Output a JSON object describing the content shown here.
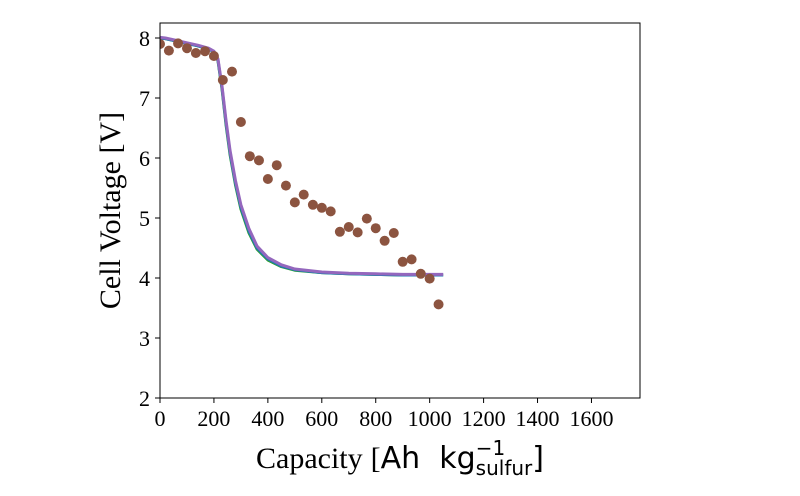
{
  "chart_data": {
    "type": "line",
    "title": "",
    "xlabel": "Capacity",
    "xlabel_unit": {
      "open": "[",
      "base": "Ah  kg",
      "superscript": "−1",
      "subscript": "sulfur",
      "close": "]"
    },
    "ylabel": "Cell Voltage [V]",
    "xlim": [
      0,
      1780
    ],
    "ylim": [
      2,
      8.25
    ],
    "xticks": [
      0,
      200,
      400,
      600,
      800,
      1000,
      1200,
      1400,
      1600
    ],
    "xtick_labels": [
      "0",
      "200",
      "400",
      "600",
      "800",
      "1000",
      "1200",
      "1400",
      "1600"
    ],
    "yticks": [
      2,
      3,
      4,
      5,
      6,
      7,
      8
    ],
    "ytick_labels": [
      "2",
      "3",
      "4",
      "5",
      "6",
      "7",
      "8"
    ],
    "grid": false,
    "legend": false,
    "series": [
      {
        "kind": "line",
        "color": "#2ca02c",
        "x": [
          0,
          20,
          60,
          100,
          140,
          180,
          200,
          215,
          230,
          245,
          260,
          280,
          300,
          330,
          360,
          400,
          450,
          500,
          600,
          700,
          800,
          900,
          1000,
          1050
        ],
        "y": [
          8.0,
          7.99,
          7.95,
          7.91,
          7.87,
          7.82,
          7.77,
          7.62,
          7.15,
          6.55,
          6.05,
          5.55,
          5.15,
          4.75,
          4.48,
          4.3,
          4.19,
          4.13,
          4.09,
          4.07,
          4.06,
          4.05,
          4.05,
          4.05
        ]
      },
      {
        "kind": "line",
        "color": "#1f77b4",
        "x": [
          0,
          20,
          60,
          100,
          140,
          180,
          200,
          215,
          230,
          245,
          260,
          280,
          300,
          330,
          360,
          400,
          450,
          500,
          600,
          700,
          800,
          900,
          1000,
          1050
        ],
        "y": [
          8.0,
          7.99,
          7.95,
          7.91,
          7.87,
          7.82,
          7.77,
          7.63,
          7.17,
          6.58,
          6.08,
          5.58,
          5.18,
          4.78,
          4.5,
          4.32,
          4.2,
          4.14,
          4.09,
          4.07,
          4.06,
          4.05,
          4.05,
          4.05
        ]
      },
      {
        "kind": "line",
        "color": "#9467bd",
        "x": [
          0,
          20,
          60,
          100,
          140,
          180,
          200,
          215,
          230,
          245,
          260,
          280,
          300,
          330,
          360,
          400,
          450,
          500,
          600,
          700,
          800,
          900,
          1000,
          1050
        ],
        "y": [
          8.01,
          8.0,
          7.96,
          7.92,
          7.88,
          7.83,
          7.78,
          7.65,
          7.2,
          6.62,
          6.12,
          5.62,
          5.22,
          4.82,
          4.53,
          4.34,
          4.22,
          4.15,
          4.1,
          4.08,
          4.07,
          4.06,
          4.06,
          4.06
        ]
      },
      {
        "kind": "scatter",
        "color": "#8c5440",
        "x": [
          0,
          33,
          67,
          100,
          133,
          167,
          200,
          233,
          267,
          300,
          333,
          367,
          400,
          433,
          467,
          500,
          533,
          567,
          600,
          633,
          667,
          700,
          733,
          767,
          800,
          833,
          867,
          900,
          933,
          967,
          1000,
          1033
        ],
        "y": [
          7.9,
          7.79,
          7.91,
          7.83,
          7.75,
          7.78,
          7.7,
          7.3,
          7.44,
          6.6,
          6.03,
          5.96,
          5.65,
          5.88,
          5.54,
          5.26,
          5.39,
          5.22,
          5.17,
          5.11,
          4.77,
          4.85,
          4.76,
          4.99,
          4.83,
          4.62,
          4.75,
          4.27,
          4.31,
          4.07,
          3.99,
          3.56
        ]
      }
    ]
  }
}
